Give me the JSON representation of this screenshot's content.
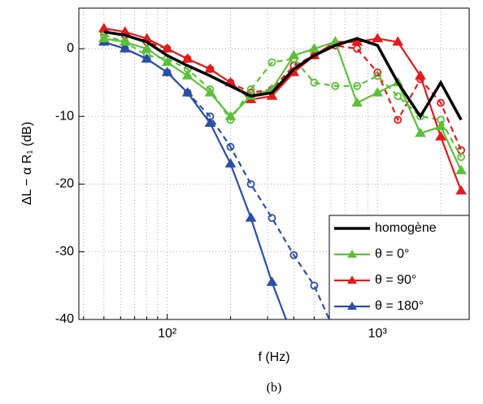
{
  "chart_data": {
    "type": "line",
    "xlabel": "f (Hz)",
    "ylabel": "ΔL − α R₁ (dB)",
    "caption": "(b)",
    "x": [
      50,
      63,
      80,
      100,
      125,
      160,
      200,
      250,
      315,
      400,
      500,
      630,
      800,
      1000,
      1250,
      1600,
      2000,
      2500
    ],
    "xscale": "log",
    "xlim": [
      38,
      2730
    ],
    "ylim": [
      -40,
      6
    ],
    "xticks": [
      {
        "value": 100,
        "label": "10²"
      },
      {
        "value": 1000,
        "label": "10³"
      }
    ],
    "xminor_ticks": [
      40,
      50,
      60,
      70,
      80,
      90,
      200,
      300,
      400,
      500,
      600,
      700,
      800,
      900,
      2000
    ],
    "yticks": [
      -40,
      -30,
      -20,
      -10,
      0
    ],
    "grid": true,
    "legend": "lower right",
    "series": [
      {
        "name": "homogène",
        "color": "#000000",
        "style": "solid",
        "marker": "none",
        "width": 3.5,
        "values": [
          2.5,
          2,
          1,
          -1,
          -2.5,
          -4,
          -5.5,
          -7,
          -6.5,
          -3,
          -1,
          0.5,
          1.5,
          0.5,
          -5,
          -10,
          -5,
          -10.5
        ]
      },
      {
        "name": "θ = 0°",
        "color": "#5cbf3a",
        "style": "solid",
        "marker": "triangle",
        "values": [
          1.5,
          1,
          0,
          -2,
          -4,
          -6.5,
          -10,
          -7,
          -6,
          -1,
          0,
          1,
          -8,
          -6.5,
          -5,
          -12.5,
          -11.5,
          -18
        ]
      },
      {
        "name": "θ = 90°",
        "color": "#e41a1c",
        "style": "solid",
        "marker": "triangle",
        "values": [
          3,
          2.5,
          1.5,
          0,
          -1.5,
          -3,
          -5,
          -7.5,
          -7,
          -3.5,
          -1,
          1,
          1,
          1.5,
          1,
          -4,
          -13,
          -21
        ]
      },
      {
        "name": "θ = 180°",
        "color": "#2b4fa8",
        "style": "solid",
        "marker": "triangle",
        "values": [
          1,
          0,
          -1.5,
          -3.5,
          -6.5,
          -11,
          -17,
          -25,
          -34.5,
          -43,
          null,
          null,
          null,
          null,
          null,
          null,
          null,
          null
        ]
      },
      {
        "color": "#5cbf3a",
        "style": "dashed",
        "marker": "circle",
        "values": [
          2,
          1,
          -1,
          -1.5,
          -3,
          -6,
          -10.5,
          -6,
          -2,
          -1.5,
          -5,
          -5.5,
          -5.5,
          -4,
          -7,
          -10,
          -10.5,
          -16
        ]
      },
      {
        "color": "#e41a1c",
        "style": "dashed",
        "marker": "circle",
        "values": [
          2.5,
          2,
          1,
          0,
          -1.5,
          -3,
          -5,
          -6.5,
          -6,
          -2.5,
          -1,
          0.5,
          0,
          -3.5,
          -10.5,
          -4.5,
          -8,
          -15
        ]
      },
      {
        "color": "#2b4fa8",
        "style": "dashed",
        "marker": "circle",
        "values": [
          1,
          0,
          -1.5,
          -3.5,
          -6.5,
          -10,
          -14.5,
          -20,
          -25,
          -30.5,
          -35,
          -42,
          null,
          null,
          null,
          null,
          null,
          null
        ]
      }
    ]
  }
}
